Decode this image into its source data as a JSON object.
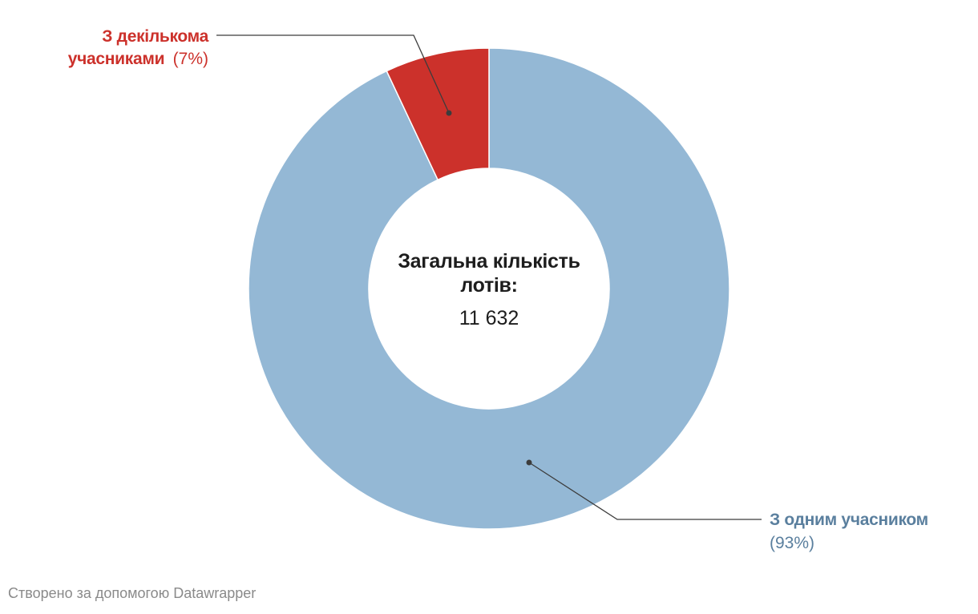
{
  "chart_data": {
    "type": "pie",
    "variant": "donut",
    "center": {
      "title_line1": "Загальна кількість",
      "title_line2": "лотів:",
      "value": "11 632"
    },
    "slices": [
      {
        "name": "З одним учасником",
        "value": 93,
        "value_label": "(93%)",
        "color": "#94b8d5",
        "label_color": "#5a7f9e"
      },
      {
        "name_line1": "З декількома",
        "name_line2": "учасниками",
        "value": 7,
        "value_label": "(7%)",
        "color": "#cc312b",
        "label_color": "#cc312b"
      }
    ]
  },
  "footer": {
    "credit": "Створено за допомогою Datawrapper"
  },
  "colors": {
    "leader_line": "#3c3c3c",
    "text_dark": "#1d1d1d",
    "credit_text": "#8a8a8a"
  }
}
